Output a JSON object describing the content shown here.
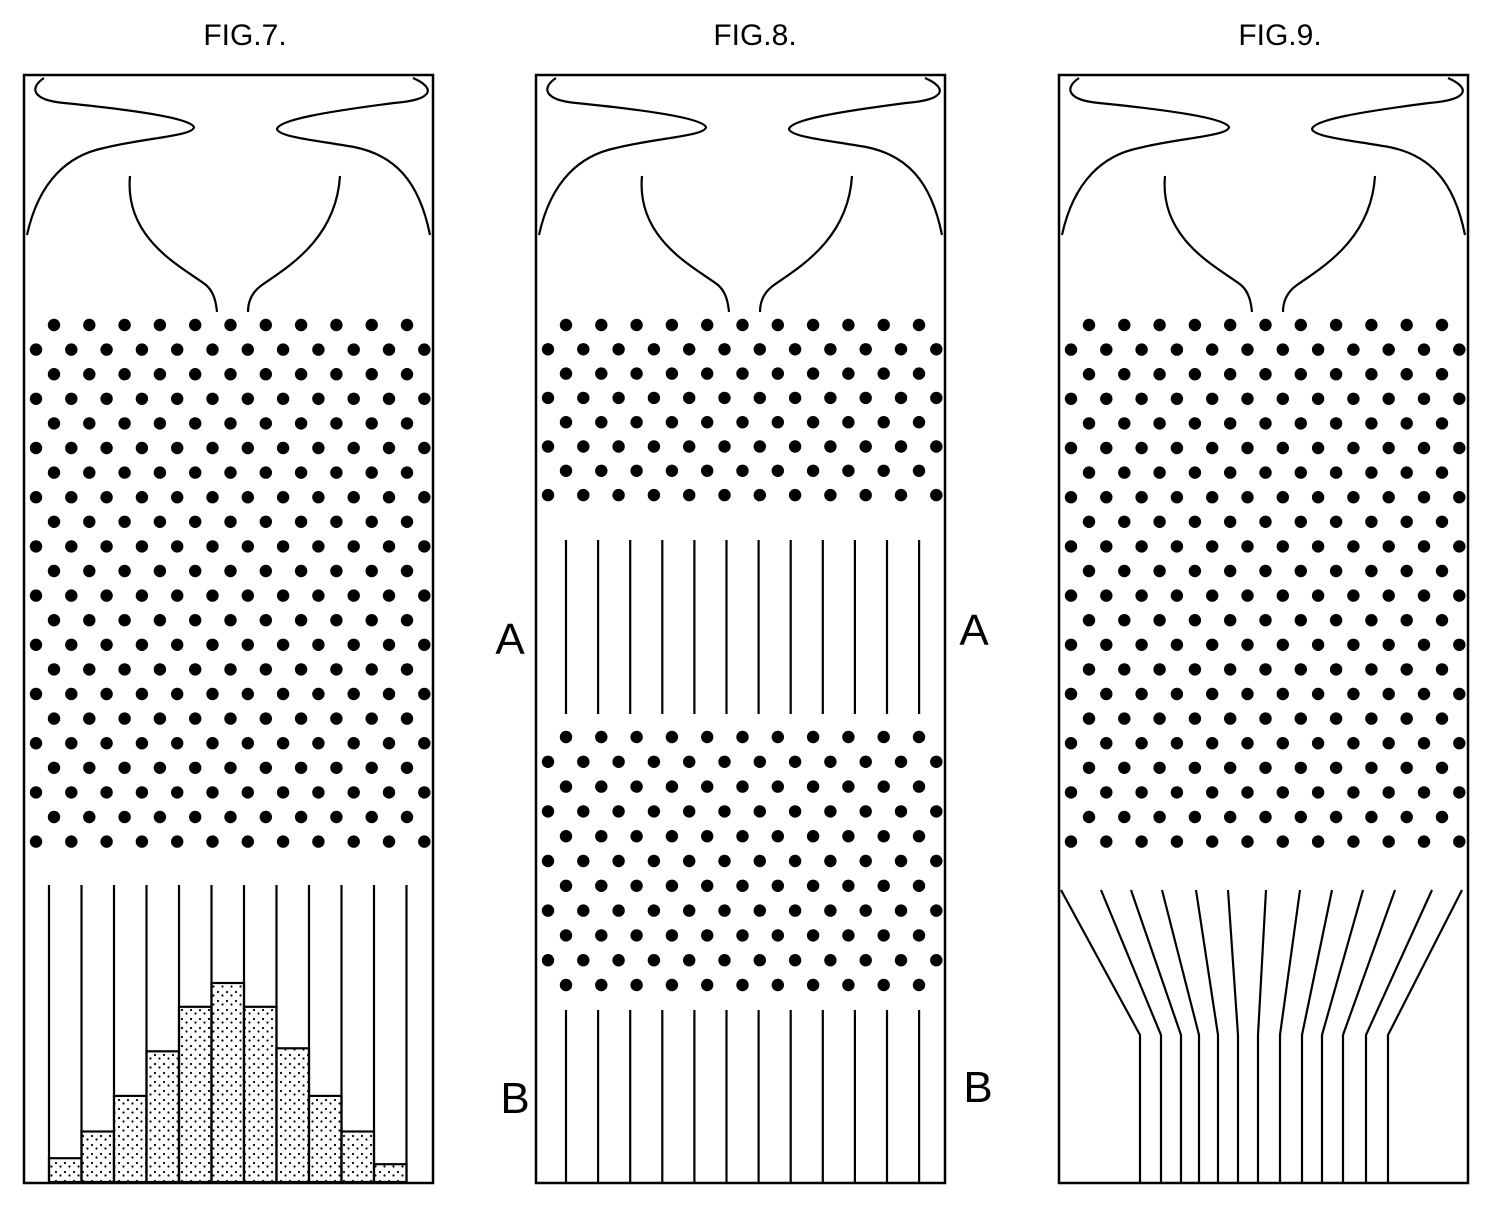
{
  "figures": [
    {
      "id": "fig7",
      "title": "FIG.7."
    },
    {
      "id": "fig8",
      "title": "FIG.8.",
      "label_a": "A",
      "label_b": "B"
    },
    {
      "id": "fig9",
      "title": "FIG.9."
    }
  ],
  "fig7_bin_fill_levels": [
    0.08,
    0.17,
    0.29,
    0.44,
    0.59,
    0.67,
    0.59,
    0.45,
    0.29,
    0.17,
    0.06
  ],
  "colors": {
    "ink": "#000000",
    "paper": "#ffffff"
  }
}
